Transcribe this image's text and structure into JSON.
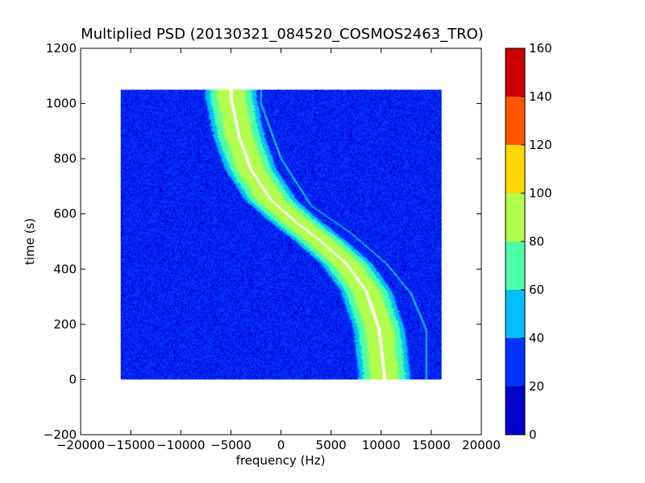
{
  "chart_data": {
    "type": "heatmap",
    "title": "Multiplied PSD (20130321_084520_COSMOS2463_TRO)",
    "xlabel": "frequency (Hz)",
    "ylabel": "time (s)",
    "xlim": [
      -20000,
      20000
    ],
    "ylim": [
      -200,
      1200
    ],
    "x_ticks": [
      "−20000",
      "−15000",
      "−10000",
      "−5000",
      "0",
      "5000",
      "10000",
      "15000",
      "20000"
    ],
    "x_tick_values": [
      -20000,
      -15000,
      -10000,
      -5000,
      0,
      5000,
      10000,
      15000,
      20000
    ],
    "y_ticks": [
      "−200",
      "0",
      "200",
      "400",
      "600",
      "800",
      "1000",
      "1200"
    ],
    "y_tick_values": [
      -200,
      0,
      200,
      400,
      600,
      800,
      1000,
      1200
    ],
    "extent": {
      "x": [
        -16000,
        16000
      ],
      "y": [
        0,
        1050
      ]
    },
    "background_level": 25,
    "traces": [
      {
        "name": "",
        "points": [
          [
            -5000,
            1020
          ],
          [
            -4200,
            880
          ],
          [
            -3000,
            760
          ],
          [
            -1000,
            650
          ],
          [
            1500,
            570
          ],
          [
            4000,
            500
          ],
          [
            6500,
            420
          ],
          [
            8500,
            320
          ],
          [
            9800,
            180
          ],
          [
            10300,
            20
          ]
        ],
        "peak": 95,
        "width": 5500
      },
      {
        "name": "",
        "points": [
          [
            -2000,
            1000
          ],
          [
            0,
            800
          ],
          [
            3000,
            630
          ],
          [
            7000,
            530
          ],
          [
            10500,
            420
          ],
          [
            13000,
            310
          ],
          [
            14500,
            180
          ]
        ],
        "peak": 45,
        "width": 200
      }
    ],
    "colorbar": {
      "ticks": [
        "0",
        "20",
        "40",
        "60",
        "80",
        "100",
        "120",
        "140",
        "160"
      ],
      "tick_values": [
        0,
        20,
        40,
        60,
        80,
        100,
        120,
        140,
        160
      ],
      "colors": [
        "#0000cc",
        "#0033ff",
        "#00bfff",
        "#4dffa6",
        "#b2ff4d",
        "#ffd700",
        "#ff5500",
        "#cc0000"
      ]
    },
    "grid": false
  }
}
